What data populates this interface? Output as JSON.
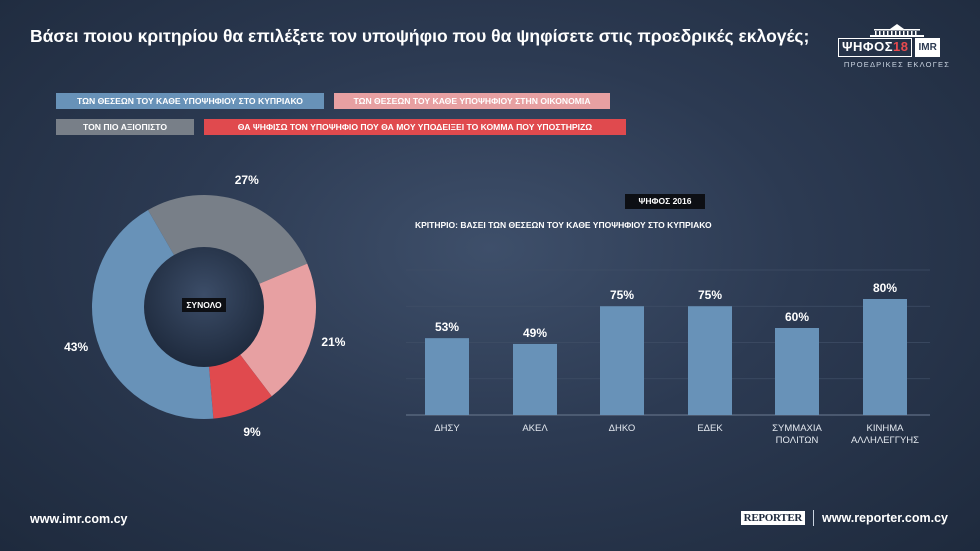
{
  "title": "Βάσει ποιου κριτηρίου θα επιλέξετε τον υποψήφιο που θα ψηφίσετε στις προεδρικές εκλογές;",
  "logo": {
    "main": "ΨΗΦΟΣ",
    "num": "18",
    "imr": "IMR",
    "sub": "ΠΡΟΕΔΡΙΚΕΣ ΕΚΛΟΓΕΣ"
  },
  "legend": [
    {
      "label": "ΤΩΝ ΘΕΣΕΩΝ ΤΟΥ ΚΑΘΕ ΥΠΟΨΗΦΙΟΥ ΣΤΟ ΚΥΠΡΙΑΚΟ",
      "color": "#6892b8"
    },
    {
      "label": "ΤΩΝ ΘΕΣΕΩΝ ΤΟΥ ΚΑΘΕ ΥΠΟΨΗΦΙΟΥ ΣΤΗΝ ΟΙΚΟΝΟΜΙΑ",
      "color": "#e7a0a2"
    },
    {
      "label": "ΤΟΝ ΠΙΟ ΑΞΙΟΠΙΣΤΟ",
      "color": "#787f88"
    },
    {
      "label": "ΘΑ ΨΗΦΙΣΩ ΤΟΝ ΥΠΟΨΗΦΙΟ ΠΟΥ ΘΑ ΜΟΥ ΥΠΟΔΕΙΞΕΙ ΤΟ ΚΟΜΜΑ ΠΟΥ ΥΠΟΣΤΗΡΙΖΩ",
      "color": "#e04a4e"
    }
  ],
  "chart_data": [
    {
      "type": "pie",
      "center_label": "ΣΥΝΟΛΟ",
      "slices": [
        {
          "name": "ΤΟΝ ΠΙΟ ΑΞΙΟΠΙΣΤΟ",
          "value": 27,
          "label": "27%",
          "color": "#787f88"
        },
        {
          "name": "ΤΩΝ ΘΕΣΕΩΝ ΤΟΥ ΚΑΘΕ ΥΠΟΨΗΦΙΟΥ ΣΤΗΝ ΟΙΚΟΝΟΜΙΑ",
          "value": 21,
          "label": "21%",
          "color": "#e7a0a2"
        },
        {
          "name": "ΘΑ ΨΗΦΙΣΩ ΤΟΝ ΥΠΟΨΗΦΙΟ ΠΟΥ ΘΑ ΜΟΥ ΥΠΟΔΕΙΞΕΙ ΤΟ ΚΟΜΜΑ ΠΟΥ ΥΠΟΣΤΗΡΙΖΩ",
          "value": 9,
          "label": "9%",
          "color": "#e04a4e"
        },
        {
          "name": "ΤΩΝ ΘΕΣΕΩΝ ΤΟΥ ΚΑΘΕ ΥΠΟΨΗΦΙΟΥ ΣΤΟ ΚΥΠΡΙΑΚΟ",
          "value": 43,
          "label": "43%",
          "color": "#6892b8"
        }
      ]
    },
    {
      "type": "bar",
      "badge": "ΨΗΦΟΣ 2016",
      "title": "ΚΡΙΤΗΡΙΟ: ΒΑΣΕΙ ΤΩΝ ΘΕΣΕΩΝ ΤΟΥ ΚΑΘΕ ΥΠΟΨΗΦΙΟΥ ΣΤΟ ΚΥΠΡΙΑΚΟ",
      "categories": [
        "ΔΗΣΥ",
        "ΑΚΕΛ",
        "ΔΗΚΟ",
        "ΕΔΕΚ",
        "ΣΥΜΜΑΧΙΑ\nΠΟΛΙΤΩΝ",
        "ΚΙΝΗΜΑ\nΑΛΛΗΛΕΓΓΥΗΣ"
      ],
      "values": [
        53,
        49,
        75,
        75,
        60,
        80
      ],
      "value_labels": [
        "53%",
        "49%",
        "75%",
        "75%",
        "60%",
        "80%"
      ],
      "ylim": [
        0,
        100
      ],
      "grid": true,
      "bar_color": "#6892b8"
    }
  ],
  "footer": {
    "left_url": "www.imr.com.cy",
    "brand": "REPORTER",
    "right_url": "www.reporter.com.cy"
  }
}
